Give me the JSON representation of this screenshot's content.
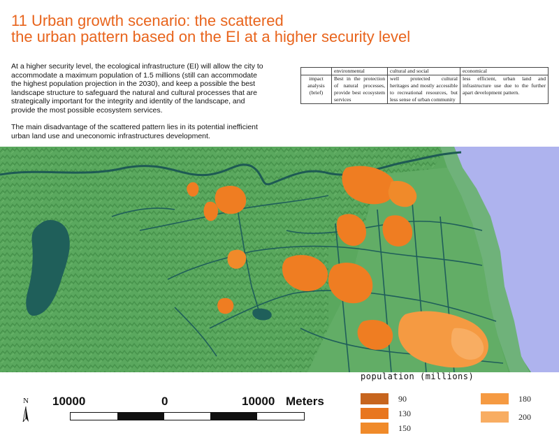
{
  "title": {
    "line1": "11 Urban growth scenario: the scattered",
    "line2": "the urban pattern based on the EI at a higher security level"
  },
  "intro": {
    "paragraph1": "At a higher security level, the ecological infrastructure (EI) will allow the city to accommodate a maximum population of 1.5 millions (still can accommodate the highest population projection in the 2030), and keep a possible the best landscape structure to safeguard the natural and cultural processes that are strategically important for the integrity and identity of the landscape, and provide the most possible ecosystem services.",
    "paragraph2": "The main disadvantage of the scattered pattern lies in its potential inefficient urban land use and uneconomic infrastructures development."
  },
  "impact_table": {
    "headers": [
      "",
      "environmental",
      "cultural and social",
      "economical"
    ],
    "row_header": "impact analysis (brief)",
    "cells": [
      "Best in the protection of natural processes, provide best ecosystem services",
      "well protected cultural heritages and mostly accessible to recreational resources, but less sense of urban community",
      "less efficient, urban land and infrastructure use due to the further apart development pattern."
    ]
  },
  "map": {
    "colors": {
      "land": "#5aa85e",
      "hills": "#3f8a45",
      "river": "#1e5a54",
      "lake": "#1f5f5a",
      "sea": "#aeb3ee",
      "coastal_band": "#6fb27a",
      "urban": "#ef7d22",
      "urban_light": "#f59a45",
      "road": "#1f5e5a"
    }
  },
  "scale": {
    "north": "N",
    "left": "10000",
    "center": "0",
    "right": "10000",
    "unit": "Meters"
  },
  "legend": {
    "title": "population (millions)",
    "items": [
      {
        "label": "90",
        "color": "#c7651e"
      },
      {
        "label": "130",
        "color": "#e8761f"
      },
      {
        "label": "150",
        "color": "#f08a2a"
      },
      {
        "label": "180",
        "color": "#f59a42"
      },
      {
        "label": "200",
        "color": "#f8ad62"
      }
    ]
  }
}
